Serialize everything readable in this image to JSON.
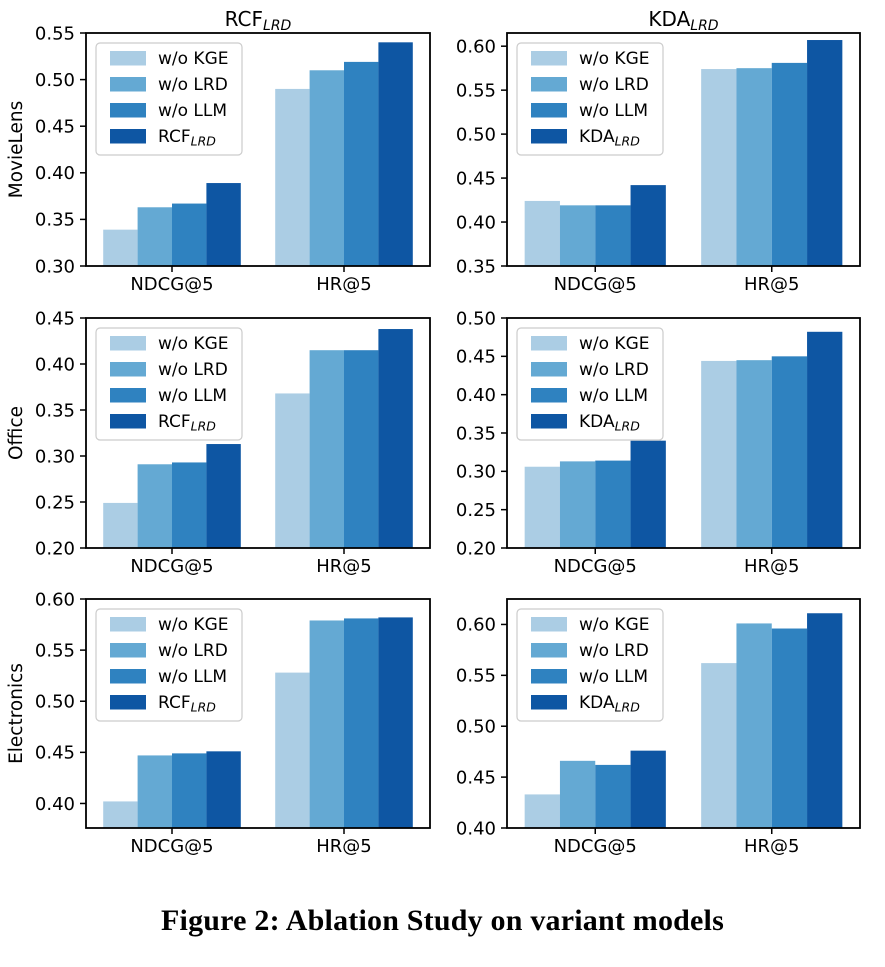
{
  "figure_caption": "Figure 2: Ablation Study on variant models",
  "background": "#ffffff",
  "axis_color": "#000000",
  "palette": [
    "#abcde4",
    "#64a9d3",
    "#2f82c0",
    "#0e56a3"
  ],
  "categories": [
    "NDCG@5",
    "HR@5"
  ],
  "chart_data": [
    {
      "id": "rcf-movielens",
      "type": "bar",
      "title": {
        "text": "RCF",
        "sub": "LRD"
      },
      "row_label": "MovieLens",
      "categories": [
        "NDCG@5",
        "HR@5"
      ],
      "ylim": [
        0.3,
        0.55
      ],
      "yticks": [
        0.3,
        0.35,
        0.4,
        0.45,
        0.5,
        0.55
      ],
      "legend_position": "upper-left",
      "legend": [
        {
          "text": "w/o KGE"
        },
        {
          "text": "w/o LRD"
        },
        {
          "text": "w/o LLM"
        },
        {
          "text": "RCF",
          "sub": "LRD"
        }
      ],
      "series": [
        {
          "name": "w/o KGE",
          "values": [
            0.339,
            0.49
          ]
        },
        {
          "name": "w/o LRD",
          "values": [
            0.363,
            0.51
          ]
        },
        {
          "name": "w/o LLM",
          "values": [
            0.367,
            0.519
          ]
        },
        {
          "name": "RCF_LRD",
          "values": [
            0.389,
            0.54
          ]
        }
      ]
    },
    {
      "id": "kda-movielens",
      "type": "bar",
      "title": {
        "text": "KDA",
        "sub": "LRD"
      },
      "categories": [
        "NDCG@5",
        "HR@5"
      ],
      "ylim": [
        0.35,
        0.615
      ],
      "yticks": [
        0.35,
        0.4,
        0.45,
        0.5,
        0.55,
        0.6
      ],
      "legend_position": "upper-left",
      "legend": [
        {
          "text": "w/o KGE"
        },
        {
          "text": "w/o LRD"
        },
        {
          "text": "w/o LLM"
        },
        {
          "text": "KDA",
          "sub": "LRD"
        }
      ],
      "series": [
        {
          "name": "w/o KGE",
          "values": [
            0.424,
            0.574
          ]
        },
        {
          "name": "w/o LRD",
          "values": [
            0.419,
            0.575
          ]
        },
        {
          "name": "w/o LLM",
          "values": [
            0.419,
            0.581
          ]
        },
        {
          "name": "KDA_LRD",
          "values": [
            0.442,
            0.607
          ]
        }
      ]
    },
    {
      "id": "rcf-office",
      "type": "bar",
      "row_label": "Office",
      "categories": [
        "NDCG@5",
        "HR@5"
      ],
      "ylim": [
        0.2,
        0.45
      ],
      "yticks": [
        0.2,
        0.25,
        0.3,
        0.35,
        0.4,
        0.45
      ],
      "legend_position": "upper-left",
      "legend": [
        {
          "text": "w/o KGE"
        },
        {
          "text": "w/o LRD"
        },
        {
          "text": "w/o LLM"
        },
        {
          "text": "RCF",
          "sub": "LRD"
        }
      ],
      "series": [
        {
          "name": "w/o KGE",
          "values": [
            0.249,
            0.368
          ]
        },
        {
          "name": "w/o LRD",
          "values": [
            0.291,
            0.415
          ]
        },
        {
          "name": "w/o LLM",
          "values": [
            0.293,
            0.415
          ]
        },
        {
          "name": "RCF_LRD",
          "values": [
            0.313,
            0.438
          ]
        }
      ]
    },
    {
      "id": "kda-office",
      "type": "bar",
      "categories": [
        "NDCG@5",
        "HR@5"
      ],
      "ylim": [
        0.2,
        0.5
      ],
      "yticks": [
        0.2,
        0.25,
        0.3,
        0.35,
        0.4,
        0.45,
        0.5
      ],
      "legend_position": "upper-left",
      "legend": [
        {
          "text": "w/o KGE"
        },
        {
          "text": "w/o LRD"
        },
        {
          "text": "w/o LLM"
        },
        {
          "text": "KDA",
          "sub": "LRD"
        }
      ],
      "series": [
        {
          "name": "w/o KGE",
          "values": [
            0.306,
            0.444
          ]
        },
        {
          "name": "w/o LRD",
          "values": [
            0.313,
            0.445
          ]
        },
        {
          "name": "w/o LLM",
          "values": [
            0.314,
            0.45
          ]
        },
        {
          "name": "KDA_LRD",
          "values": [
            0.34,
            0.482
          ]
        }
      ]
    },
    {
      "id": "rcf-electronics",
      "type": "bar",
      "row_label": "Electronics",
      "categories": [
        "NDCG@5",
        "HR@5"
      ],
      "ylim": [
        0.376,
        0.6
      ],
      "yticks": [
        0.4,
        0.45,
        0.5,
        0.55,
        0.6
      ],
      "legend_position": "upper-left",
      "legend": [
        {
          "text": "w/o KGE"
        },
        {
          "text": "w/o LRD"
        },
        {
          "text": "w/o LLM"
        },
        {
          "text": "RCF",
          "sub": "LRD"
        }
      ],
      "series": [
        {
          "name": "w/o KGE",
          "values": [
            0.402,
            0.528
          ]
        },
        {
          "name": "w/o LRD",
          "values": [
            0.447,
            0.579
          ]
        },
        {
          "name": "w/o LLM",
          "values": [
            0.449,
            0.581
          ]
        },
        {
          "name": "RCF_LRD",
          "values": [
            0.451,
            0.582
          ]
        }
      ]
    },
    {
      "id": "kda-electronics",
      "type": "bar",
      "categories": [
        "NDCG@5",
        "HR@5"
      ],
      "ylim": [
        0.4,
        0.625
      ],
      "yticks": [
        0.4,
        0.45,
        0.5,
        0.55,
        0.6
      ],
      "legend_position": "upper-left",
      "legend": [
        {
          "text": "w/o KGE"
        },
        {
          "text": "w/o LRD"
        },
        {
          "text": "w/o LLM"
        },
        {
          "text": "KDA",
          "sub": "LRD"
        }
      ],
      "series": [
        {
          "name": "w/o KGE",
          "values": [
            0.433,
            0.562
          ]
        },
        {
          "name": "w/o LRD",
          "values": [
            0.466,
            0.601
          ]
        },
        {
          "name": "w/o LLM",
          "values": [
            0.462,
            0.596
          ]
        },
        {
          "name": "KDA_LRD",
          "values": [
            0.476,
            0.611
          ]
        }
      ]
    }
  ]
}
